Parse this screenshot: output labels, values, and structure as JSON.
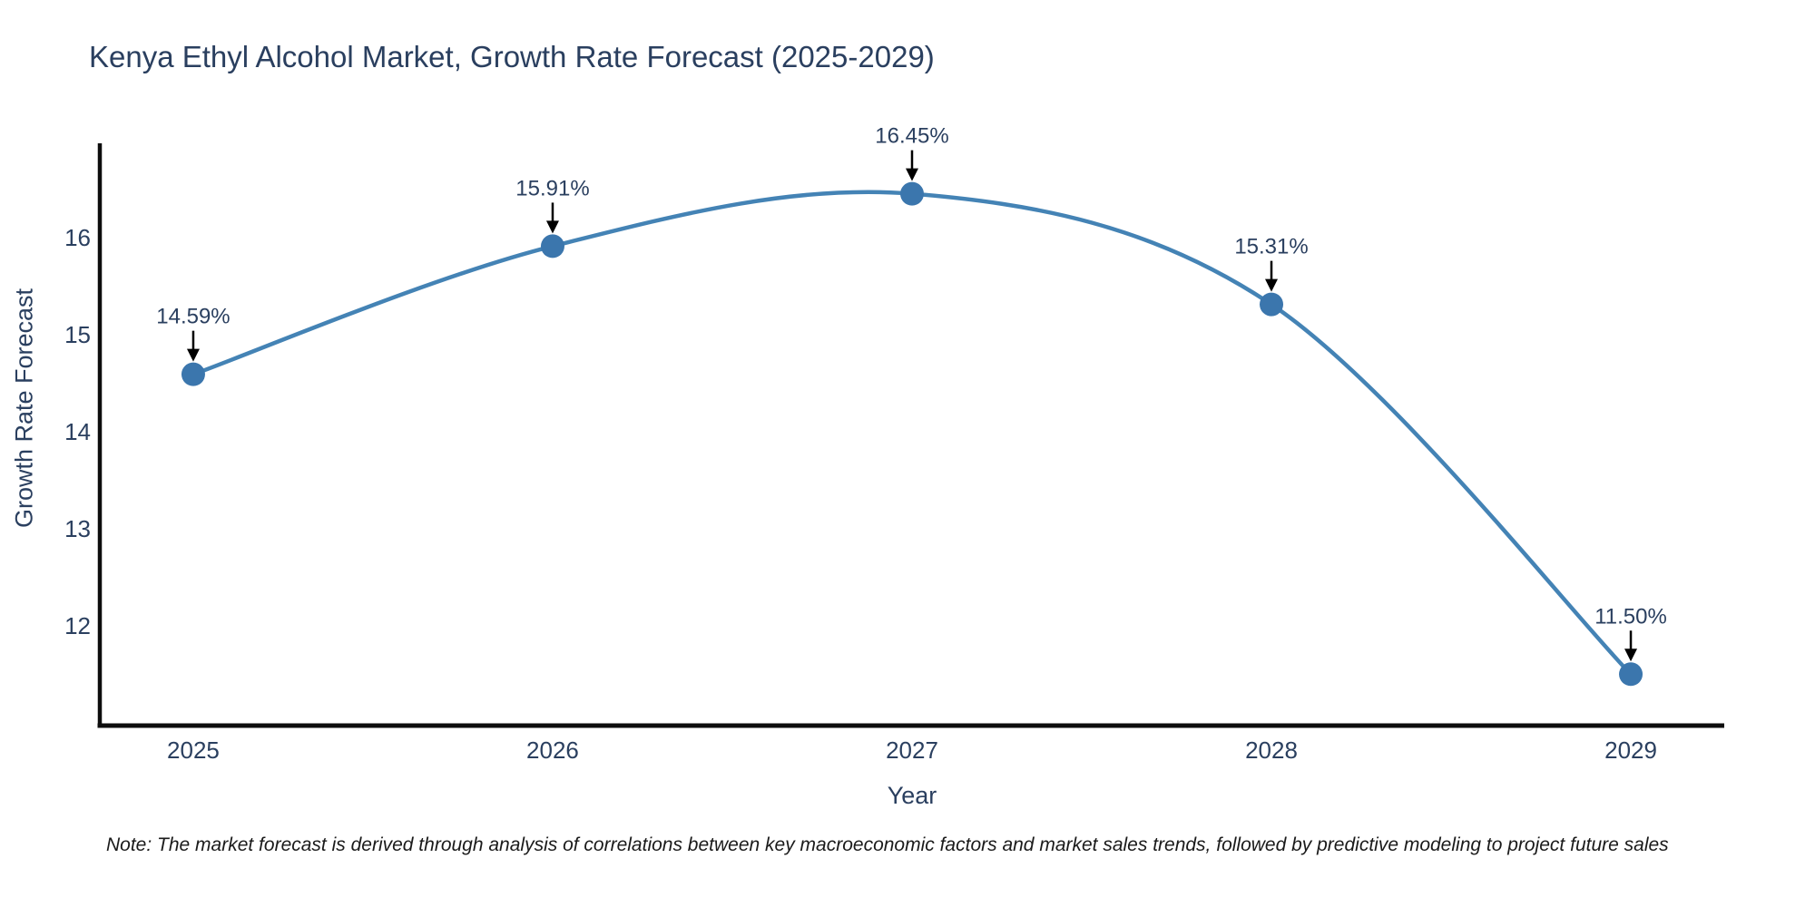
{
  "title": "Kenya Ethyl Alcohol Market, Growth Rate Forecast (2025-2029)",
  "note": "Note: The market forecast is derived through analysis of correlations between key macroeconomic factors and market sales trends, followed by predictive modeling to project future sales",
  "colors": {
    "line": "#4483b5",
    "marker": "#3b76ad",
    "axis": "#0d0d0d",
    "arrow": "#000000",
    "text": "#2a3f5f",
    "note_text": "#1a1a1a",
    "background": "#ffffff"
  },
  "chart_data": {
    "type": "line",
    "title": "Kenya Ethyl Alcohol Market, Growth Rate Forecast (2025-2029)",
    "xlabel": "Year",
    "ylabel": "Growth Rate Forecast",
    "x": [
      2025,
      2026,
      2027,
      2028,
      2029
    ],
    "values": [
      14.59,
      15.91,
      16.45,
      15.31,
      11.5
    ],
    "labels": [
      "14.59%",
      "15.91%",
      "16.45%",
      "15.31%",
      "11.50%"
    ],
    "xticks": [
      2025,
      2026,
      2027,
      2028,
      2029
    ],
    "yticks": [
      12,
      13,
      14,
      15,
      16
    ],
    "xlim": [
      2024.74,
      2029.26
    ],
    "ylim": [
      10.97,
      16.97
    ],
    "line_shape": "spline",
    "grid": false,
    "legend": "none",
    "marker_size": 13
  }
}
